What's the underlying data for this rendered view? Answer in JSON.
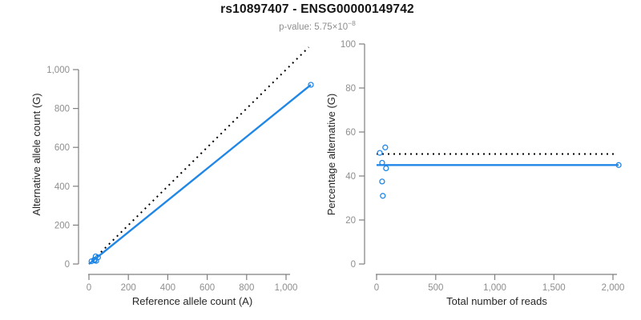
{
  "title": "rs10897407 - ENSG00000149742",
  "subtitle": {
    "base": "p-value: 5.75×10",
    "exponent": "−8"
  },
  "colors": {
    "accent_blue": "#2187E6",
    "line_black": "#000000",
    "axis_gray": "#7F7F7F",
    "tick_label_gray": "#8E8E8E",
    "axis_title_color": "#262626",
    "title_color": "#141414",
    "subtitle_color": "#8E8E8E",
    "background": "#FFFFFF"
  },
  "chart_data": [
    {
      "type": "scatter",
      "position": "left",
      "xlabel": "Reference allele count (A)",
      "ylabel": "Alternative allele count (G)",
      "xlim": [
        0,
        1150
      ],
      "ylim": [
        0,
        1150
      ],
      "xticks": [
        0,
        200,
        400,
        600,
        800,
        1000
      ],
      "xtick_labels": [
        "0",
        "200",
        "400",
        "600",
        "800",
        "1,000"
      ],
      "yticks": [
        0,
        200,
        400,
        600,
        800,
        1000
      ],
      "ytick_labels": [
        "0",
        "200",
        "400",
        "600",
        "800",
        "1,000"
      ],
      "grid": false,
      "legend": false,
      "points": [
        [
          13,
          14
        ],
        [
          27,
          22
        ],
        [
          34,
          39
        ],
        [
          46,
          34
        ],
        [
          29,
          18
        ],
        [
          37,
          16
        ],
        [
          1126,
          922
        ]
      ],
      "lines": [
        {
          "name": "identity-line",
          "style": "dotted",
          "color": "black",
          "from": [
            0,
            0
          ],
          "to": [
            1115,
            1115
          ]
        },
        {
          "name": "fit-line",
          "style": "solid",
          "color": "blue",
          "from": [
            0,
            0
          ],
          "to": [
            1126,
            922
          ]
        }
      ]
    },
    {
      "type": "scatter",
      "position": "right",
      "xlabel": "Total number of reads",
      "ylabel": "Percentage alternative (G)",
      "xlim": [
        0,
        2100
      ],
      "ylim": [
        0,
        100
      ],
      "xticks": [
        0,
        500,
        1000,
        1500,
        2000
      ],
      "xtick_labels": [
        "0",
        "500",
        "1,000",
        "1,500",
        "2,000"
      ],
      "yticks": [
        0,
        20,
        40,
        60,
        80,
        100
      ],
      "ytick_labels": [
        "0",
        "20",
        "40",
        "60",
        "80",
        "100"
      ],
      "grid": false,
      "legend": false,
      "points": [
        [
          27,
          50.5
        ],
        [
          73,
          53
        ],
        [
          47,
          46
        ],
        [
          80,
          43.5
        ],
        [
          47,
          37.5
        ],
        [
          53,
          31
        ],
        [
          2048,
          45
        ]
      ],
      "lines": [
        {
          "name": "expected-ratio-line",
          "style": "dotted",
          "color": "black",
          "from": [
            0,
            50
          ],
          "to": [
            2020,
            50
          ]
        },
        {
          "name": "mean-ratio-line",
          "style": "solid",
          "color": "blue",
          "from": [
            0,
            45
          ],
          "to": [
            2048,
            45
          ]
        }
      ]
    }
  ]
}
